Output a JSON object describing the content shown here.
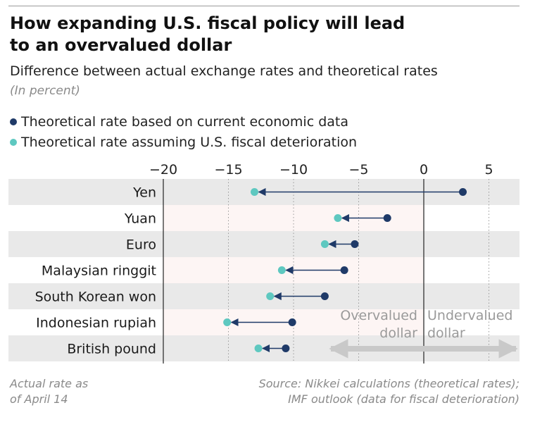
{
  "header": {
    "title_line1": "How expanding U.S. fiscal policy will lead",
    "title_line2": "to an overvalued dollar",
    "subtitle": "Difference between actual exchange rates and theoretical rates",
    "unit": "(In percent)"
  },
  "legend": {
    "current": "Theoretical rate based on current economic data",
    "fiscal": "Theoretical rate assuming U.S. fiscal deterioration"
  },
  "colors": {
    "current": "#1f3a68",
    "fiscal": "#5ec8c0",
    "band": "#e9e9e9",
    "row_pink": "#fdf5f4",
    "zero_line": "#555555",
    "grid": "#9a9a9a",
    "annotation": "#9a9a9a",
    "arrow": "#c9c9c9"
  },
  "chart_data": {
    "type": "dot-arrow",
    "xlim": [
      -20,
      7.2
    ],
    "xticks": [
      -20,
      -15,
      -10,
      -5,
      0,
      5
    ],
    "xtick_labels": [
      "−20",
      "−15",
      "−10",
      "−5",
      "0",
      "5"
    ],
    "categories": [
      "Yen",
      "Yuan",
      "Euro",
      "Malaysian ringgit",
      "South Korean won",
      "Indonesian rupiah",
      "British pound"
    ],
    "series": [
      {
        "name": "Theoretical rate based on current economic data",
        "values": [
          3.0,
          -2.8,
          -5.3,
          -6.1,
          -7.6,
          -10.1,
          -10.6
        ]
      },
      {
        "name": "Theoretical rate assuming U.S. fiscal deterioration",
        "values": [
          -13.0,
          -6.6,
          -7.6,
          -10.9,
          -11.8,
          -15.1,
          -12.7
        ]
      }
    ],
    "annotations": {
      "overvalued_line1": "Overvalued",
      "overvalued_line2": "dollar",
      "undervalued_line1": "Undervalued",
      "undervalued_line2": "dollar"
    }
  },
  "footnotes": {
    "left_line1": "Actual rate as",
    "left_line2": "of April 14",
    "right_line1": "Source: Nikkei calculations (theoretical rates);",
    "right_line2": "IMF outlook (data for fiscal deterioration)"
  }
}
